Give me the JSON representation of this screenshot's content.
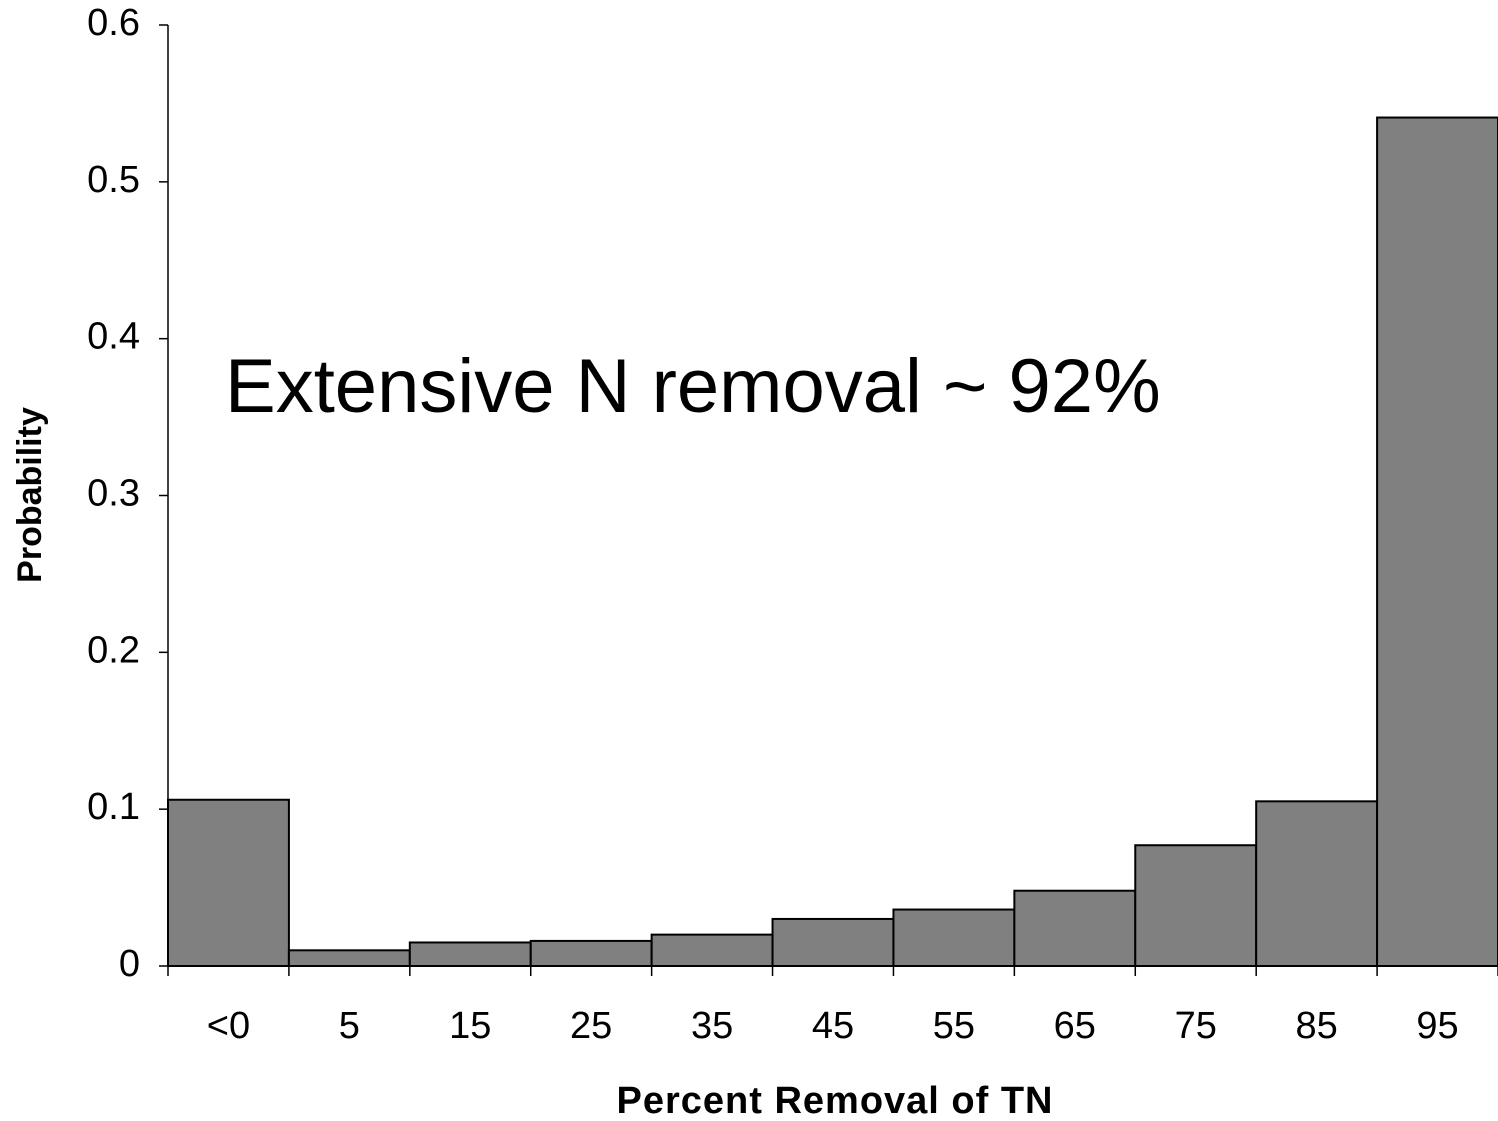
{
  "chart_data": {
    "type": "bar",
    "annotation": "Extensive N removal ~ 92%",
    "xlabel": "Percent Removal of TN",
    "ylabel": "Probability",
    "categories": [
      "<0",
      "5",
      "15",
      "25",
      "35",
      "45",
      "55",
      "65",
      "75",
      "85",
      "95"
    ],
    "values": [
      0.106,
      0.01,
      0.015,
      0.016,
      0.02,
      0.03,
      0.036,
      0.048,
      0.077,
      0.105,
      0.541
    ],
    "color": "#808080",
    "ylim": [
      0,
      0.6
    ],
    "yticks": [
      0,
      0.1,
      0.2,
      0.3,
      0.4,
      0.5,
      0.6
    ],
    "grid": false
  }
}
